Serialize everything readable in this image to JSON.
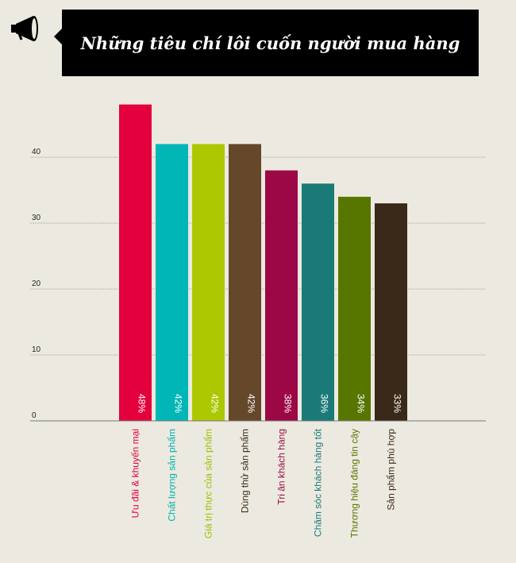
{
  "header": {
    "title": "Những tiêu chí lôi cuốn người mua hàng"
  },
  "colors": {
    "background": "#eceae0",
    "title_bg": "#000000",
    "title_text": "#ffffff"
  },
  "chart_data": {
    "type": "bar",
    "title": "Những tiêu chí lôi cuốn người mua hàng",
    "categories": [
      "Ưu đãi & khuyến mại",
      "Chất lượng sản phẩm",
      "Giá trị thực của sản phẩm",
      "Dùng thử sản phẩm",
      "Tri ân khách hàng",
      "Chăm sóc khách hàng tốt",
      "Thương hiệu đáng tin cậy",
      "Sản phẩm phù hợp"
    ],
    "values": [
      48,
      42,
      42,
      42,
      38,
      36,
      34,
      33
    ],
    "value_labels": [
      "48%",
      "42%",
      "42%",
      "42%",
      "38%",
      "36%",
      "34%",
      "33%"
    ],
    "bar_colors": [
      "#e4003c",
      "#00b6b6",
      "#acc800",
      "#65472a",
      "#9c0845",
      "#1a7a78",
      "#577600",
      "#3a2918"
    ],
    "label_colors": [
      "#e4003c",
      "#00b0b0",
      "#9cbf00",
      "#3a2918",
      "#9c0845",
      "#1a7a78",
      "#577600",
      "#3a2918"
    ],
    "yticks": [
      0,
      10,
      20,
      30,
      40
    ],
    "ylim": [
      0,
      50
    ],
    "grid": true,
    "xlabel": "",
    "ylabel": ""
  }
}
